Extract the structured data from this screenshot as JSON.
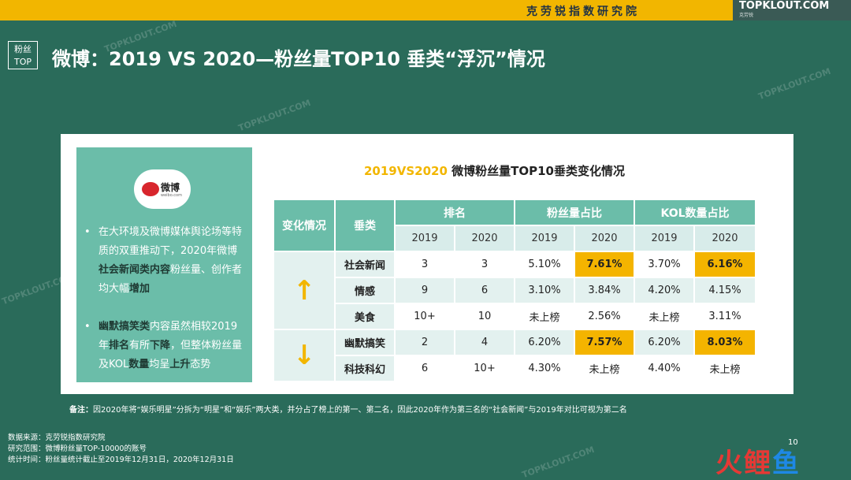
{
  "header": {
    "institute": "克劳锐指数研究院",
    "logo_text": "TOPKLOUT.COM",
    "logo_sub": "克劳锐",
    "badge_line1": "粉丝",
    "badge_line2": "TOP",
    "title": "微博：2019 VS 2020—粉丝量TOP10 垂类“浮沉”情况"
  },
  "side": {
    "logo_name": "微博",
    "logo_sub": "weibo.com",
    "bullets": [
      {
        "pre": "在大环境及微博媒体舆论场等特质的双重推动下，2020年微博",
        "b1": "社会新闻类内容",
        "mid": "粉丝量、创作者均大幅",
        "b2": "增加",
        "post": ""
      },
      {
        "pre": "",
        "b1": "幽默搞笑类",
        "mid": "内容虽然相较2019年",
        "b2": "排名",
        "mid2": "有所",
        "b3": "下降",
        "mid3": "，但整体粉丝量及KOL",
        "b4": "数量",
        "mid4": "均呈",
        "b5": "上升",
        "post": "态势"
      }
    ]
  },
  "table": {
    "title_y": "2019VS2020",
    "title_rest": " 微博粉丝量TOP10垂类变化情况",
    "h_change": "变化情况",
    "h_category": "垂类",
    "h_rank": "排名",
    "h_fans": "粉丝量占比",
    "h_kol": "KOL数量占比",
    "y2019": "2019",
    "y2020": "2020",
    "up_icon": "↑",
    "down_icon": "↓",
    "rows": [
      {
        "cat": "社会新闻",
        "r19": "3",
        "r20": "3",
        "f19": "5.10%",
        "f20": "7.61%",
        "k19": "3.70%",
        "k20": "6.16%"
      },
      {
        "cat": "情感",
        "r19": "9",
        "r20": "6",
        "f19": "3.10%",
        "f20": "3.84%",
        "k19": "4.20%",
        "k20": "4.15%"
      },
      {
        "cat": "美食",
        "r19": "10+",
        "r20": "10",
        "f19": "未上榜",
        "f20": "2.56%",
        "k19": "未上榜",
        "k20": "3.11%"
      },
      {
        "cat": "幽默搞笑",
        "r19": "2",
        "r20": "4",
        "f19": "6.20%",
        "f20": "7.57%",
        "k19": "6.20%",
        "k20": "8.03%"
      },
      {
        "cat": "科技科幻",
        "r19": "6",
        "r20": "10+",
        "f19": "4.30%",
        "f20": "未上榜",
        "k19": "4.40%",
        "k20": "未上榜"
      }
    ],
    "highlight_color": "#f4b400"
  },
  "note": {
    "label": "备注：",
    "text": "因2020年将“娱乐明星”分拆为“明星”和“娱乐”两大类，并分占了榜上的第一、第二名，因此2020年作为第三名的“社会新闻”与2019年对比可视为第二名"
  },
  "source": {
    "line1": "数据来源：克劳锐指数研究院",
    "line2": "研究范围：微博粉丝量TOP-10000的账号",
    "line3": "统计时间：粉丝量统计截止至2019年12月31日，2020年12月31日"
  },
  "page_number": "10",
  "brand": {
    "a": "火",
    "b": "鲤",
    "c": "鱼"
  },
  "watermark": "TOPKLOUT.COM",
  "colors": {
    "accent": "#f2b600",
    "bg": "#2a6b5a",
    "teal": "#6bbda9"
  }
}
